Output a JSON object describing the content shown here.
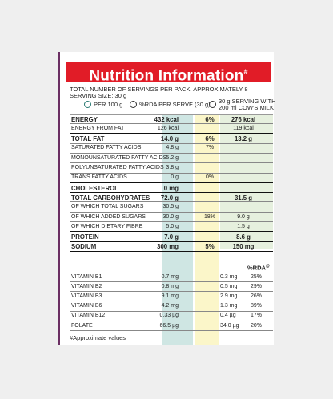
{
  "title": "Nutrition Information",
  "title_mark": "#",
  "servings_text": "TOTAL NUMBER OF SERVINGS PER PACK: APPROXIMATELY 8",
  "serving_size_text": "SERVING SIZE: 30 g",
  "legend": {
    "per100": "PER 100 g",
    "rda": "%RDA PER SERVE (30 g)",
    "milk_line1": "30 g SERVING WITH",
    "milk_line2": "200 ml COW'S MILK"
  },
  "colors": {
    "teal": "#cfe6e3",
    "yellow": "#fbf6c9",
    "green": "#e6f0de",
    "red": "#e11c27",
    "purple": "#6b2f63"
  },
  "rows": [
    {
      "label": "ENERGY",
      "per100": "432 kcal",
      "rda": "6%",
      "milk": "276 kcal",
      "bold": true
    },
    {
      "label": "ENERGY FROM FAT",
      "per100": "126 kcal",
      "rda": "",
      "milk": "119 kcal",
      "bold": false,
      "thick": true
    },
    {
      "label": "TOTAL FAT",
      "per100": "14.0 g",
      "rda": "6%",
      "milk": "13.2 g",
      "bold": true
    },
    {
      "label": "SATURATED FATTY ACIDS",
      "per100": "4.8 g",
      "rda": "7%",
      "milk": "",
      "bold": false
    },
    {
      "label": "MONOUNSATURATED FATTY ACIDS",
      "per100": "5.2 g",
      "rda": "",
      "milk": "",
      "bold": false
    },
    {
      "label": "POLYUNSATURATED FATTY ACIDS",
      "per100": "3.8 g",
      "rda": "",
      "milk": "",
      "bold": false
    },
    {
      "label": "TRANS FATTY ACIDS",
      "per100": "0 g",
      "rda": "0%",
      "milk": "",
      "bold": false,
      "thick": true
    },
    {
      "label": "CHOLESTEROL",
      "per100": "0 mg",
      "rda": "",
      "milk": "",
      "bold": true,
      "thick": true
    },
    {
      "label": "TOTAL CARBOHYDRATES",
      "per100": "72.0 g",
      "rda": "",
      "milk": "31.5 g",
      "bold": true
    },
    {
      "label": "OF WHICH TOTAL SUGARS",
      "per100": "30.5 g",
      "rda": "",
      "milk": "",
      "bold": false
    },
    {
      "label": "OF WHICH ADDED SUGARS",
      "per100": "30.0 g",
      "rda": "18%",
      "milk": "9.0 g",
      "bold": false
    },
    {
      "label": "OF WHICH DIETARY FIBRE",
      "per100": "5.0 g",
      "rda": "",
      "milk": "1.5 g",
      "bold": false,
      "thick": true
    },
    {
      "label": "PROTEIN",
      "per100": "7.0 g",
      "rda": "",
      "milk": "8.6 g",
      "bold": true,
      "thick": true
    },
    {
      "label": "SODIUM",
      "per100": "300 mg",
      "rda": "5%",
      "milk": "150 mg",
      "bold": true,
      "thick": true
    }
  ],
  "rda_header": "%RDA",
  "rda_header_mark": "@",
  "vitamins": [
    {
      "label": "VITAMIN B1",
      "per100": "0.7 mg",
      "amt": "0.3 mg",
      "pct": "25%"
    },
    {
      "label": "VITAMIN B2",
      "per100": "0.8 mg",
      "amt": "0.5 mg",
      "pct": "29%"
    },
    {
      "label": "VITAMIN B3",
      "per100": "9.1 mg",
      "amt": "2.9 mg",
      "pct": "26%"
    },
    {
      "label": "VITAMIN B6",
      "per100": "4.2 mg",
      "amt": "1.3 mg",
      "pct": "89%"
    },
    {
      "label": "VITAMIN B12",
      "per100": "0.33 µg",
      "amt": "0.4 µg",
      "pct": "17%"
    },
    {
      "label": "FOLATE",
      "per100": "66.5 µg",
      "amt": "34.0 µg",
      "pct": "20%"
    }
  ],
  "footnote": "#Approximate values"
}
